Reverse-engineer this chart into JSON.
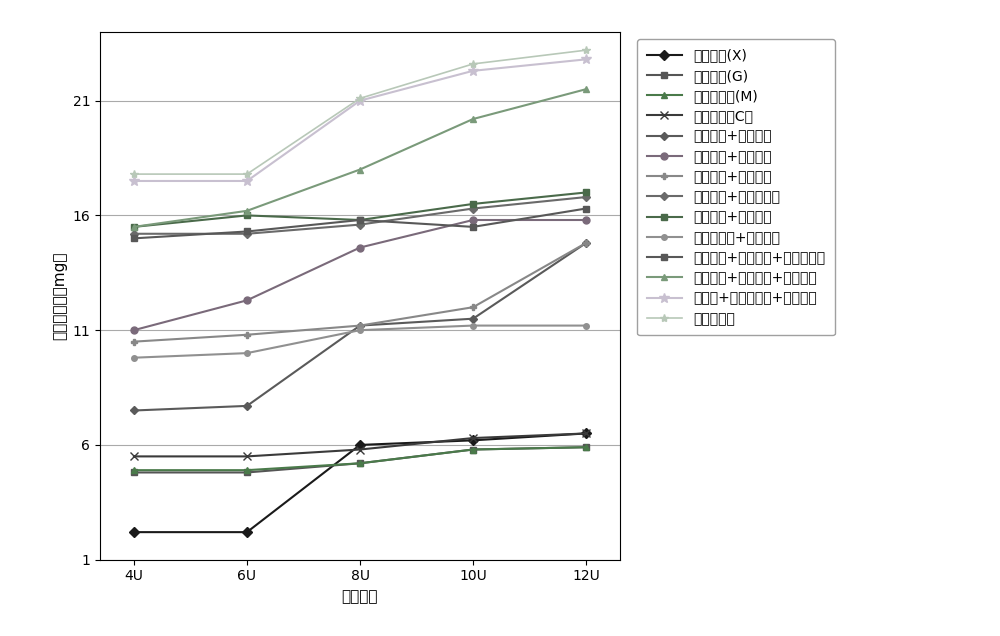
{
  "x_labels": [
    "4U",
    "6U",
    "8U",
    "10U",
    "12U"
  ],
  "x_values": [
    0,
    1,
    2,
    3,
    4
  ],
  "series": [
    {
      "label": "木聚糖酶(X)",
      "values": [
        2.2,
        2.2,
        6.0,
        6.2,
        6.5
      ],
      "color": "#1a1a1a",
      "marker": "D",
      "markersize": 5,
      "linestyle": "-",
      "linewidth": 1.5
    },
    {
      "label": "葡聚糖酶(G)",
      "values": [
        4.8,
        4.8,
        5.2,
        5.8,
        5.9
      ],
      "color": "#555555",
      "marker": "s",
      "markersize": 5,
      "linestyle": "-",
      "linewidth": 1.5
    },
    {
      "label": "甘露聚糖酶(M)",
      "values": [
        4.9,
        4.9,
        5.2,
        5.8,
        5.9
      ],
      "color": "#4a7a4a",
      "marker": "^",
      "markersize": 5,
      "linestyle": "-",
      "linewidth": 1.5
    },
    {
      "label": "纤维素酶（C）",
      "values": [
        5.5,
        5.5,
        5.8,
        6.3,
        6.5
      ],
      "color": "#3a3a3a",
      "marker": "x",
      "markersize": 6,
      "linestyle": "-",
      "linewidth": 1.5
    },
    {
      "label": "木聚糖酶+葡聚糖酶",
      "values": [
        7.5,
        7.7,
        11.2,
        11.5,
        14.8
      ],
      "color": "#5a5a5a",
      "marker": "D",
      "markersize": 4,
      "linestyle": "-",
      "linewidth": 1.5
    },
    {
      "label": "木聚糖酶+甘露糖酶",
      "values": [
        11.0,
        12.3,
        14.6,
        15.8,
        15.8
      ],
      "color": "#7a6a7a",
      "marker": "o",
      "markersize": 5,
      "linestyle": "-",
      "linewidth": 1.5
    },
    {
      "label": "木聚糖酶+纤维素酶",
      "values": [
        10.5,
        10.8,
        11.2,
        12.0,
        14.8
      ],
      "color": "#888888",
      "marker": "P",
      "markersize": 4,
      "linestyle": "-",
      "linewidth": 1.5
    },
    {
      "label": "葡聚糖酶+甘露聚糖酶",
      "values": [
        15.2,
        15.2,
        15.6,
        16.3,
        16.8
      ],
      "color": "#6a6a6a",
      "marker": "D",
      "markersize": 4,
      "linestyle": "-",
      "linewidth": 1.5
    },
    {
      "label": "葡聚糖酶+纤维素酶",
      "values": [
        15.5,
        16.0,
        15.8,
        16.5,
        17.0
      ],
      "color": "#4a6a4a",
      "marker": "s",
      "markersize": 4,
      "linestyle": "-",
      "linewidth": 1.5
    },
    {
      "label": "甘露聚糖酶+纤维素酶",
      "values": [
        9.8,
        10.0,
        11.0,
        11.2,
        11.2
      ],
      "color": "#909090",
      "marker": "o",
      "markersize": 4,
      "linestyle": "-",
      "linewidth": 1.5
    },
    {
      "label": "木聚糖酶+葡聚糖酶+甘露聚糖酶",
      "values": [
        15.0,
        15.3,
        15.8,
        15.5,
        16.3
      ],
      "color": "#585858",
      "marker": "s",
      "markersize": 4,
      "linestyle": "-",
      "linewidth": 1.5
    },
    {
      "label": "木聚糖酶+葡聚糖酶+纤维素酶",
      "values": [
        15.5,
        16.2,
        18.0,
        20.2,
        21.5
      ],
      "color": "#7a9a7a",
      "marker": "^",
      "markersize": 5,
      "linestyle": "-",
      "linewidth": 1.5
    },
    {
      "label": "葡聚糖+甘露聚糖酶+纤维素酶",
      "values": [
        17.5,
        17.5,
        21.0,
        22.3,
        22.8
      ],
      "color": "#c8c0d0",
      "marker": "*",
      "markersize": 7,
      "linestyle": "-",
      "linewidth": 1.5
    },
    {
      "label": "饲用复合酶",
      "values": [
        17.8,
        17.8,
        21.1,
        22.6,
        23.2
      ],
      "color": "#b8c8b8",
      "marker": "*",
      "markersize": 6,
      "linestyle": "-",
      "linewidth": 1.2
    }
  ],
  "ylabel": "还原糖增量（mg）",
  "xlabel": "酶活单位",
  "ylim": [
    1,
    24
  ],
  "yticks": [
    1,
    6,
    11,
    16,
    21
  ],
  "grid_color": "#aaaaaa",
  "background_color": "#ffffff",
  "legend_fontsize": 8.5,
  "axis_fontsize": 11
}
